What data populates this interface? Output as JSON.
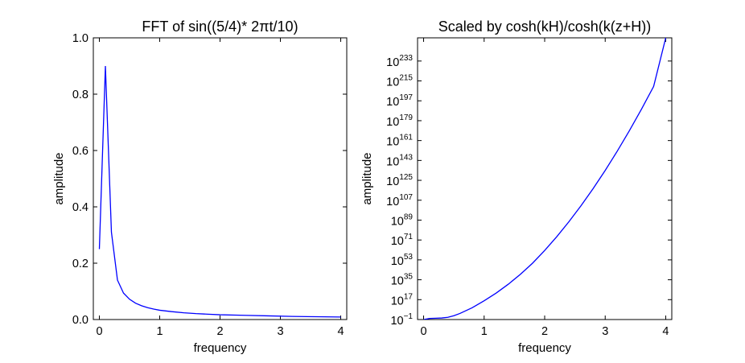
{
  "chart_data": [
    {
      "type": "line",
      "title": "FFT of sin((5/4)* 2πt/10)",
      "xlabel": "frequency",
      "ylabel": "amplitude",
      "xlim": [
        -0.1,
        4.1
      ],
      "ylim": [
        0.0,
        1.0
      ],
      "yscale": "linear",
      "grid": false,
      "line_color": "#0000ff",
      "xticks": [
        0,
        1,
        2,
        3,
        4
      ],
      "xtick_labels": [
        "0",
        "1",
        "2",
        "3",
        "4"
      ],
      "yticks": [
        0.0,
        0.2,
        0.4,
        0.6,
        0.8,
        1.0
      ],
      "ytick_labels": [
        "0.0",
        "0.2",
        "0.4",
        "0.6",
        "0.8",
        "1.0"
      ],
      "series": [
        {
          "x": [
            0.0,
            0.1,
            0.2,
            0.3,
            0.4,
            0.5,
            0.6,
            0.7,
            0.8,
            0.9,
            1.0,
            1.2,
            1.4,
            1.6,
            1.8,
            2.0,
            2.4,
            2.8,
            3.2,
            3.6,
            4.0
          ],
          "y": [
            0.25,
            0.9,
            0.31,
            0.14,
            0.094,
            0.072,
            0.058,
            0.049,
            0.042,
            0.037,
            0.033,
            0.028,
            0.024,
            0.021,
            0.019,
            0.017,
            0.015,
            0.013,
            0.011,
            0.01,
            0.009
          ]
        }
      ]
    },
    {
      "type": "line",
      "title": "Scaled by cosh(kH)/cosh(k(z+H))",
      "xlabel": "frequency",
      "ylabel": "amplitude",
      "xlim": [
        -0.1,
        4.1
      ],
      "ylim_log10": [
        -1,
        254
      ],
      "yscale": "log",
      "grid": false,
      "line_color": "#0000ff",
      "xticks": [
        0,
        1,
        2,
        3,
        4
      ],
      "xtick_labels": [
        "0",
        "1",
        "2",
        "3",
        "4"
      ],
      "yticks_exponent": [
        -1,
        17,
        35,
        53,
        71,
        89,
        107,
        125,
        143,
        161,
        179,
        197,
        215,
        233
      ],
      "ytick_base": "10",
      "ytick_exponent_labels": [
        "−1",
        "17",
        "35",
        "53",
        "71",
        "89",
        "107",
        "125",
        "143",
        "161",
        "179",
        "197",
        "215",
        "233"
      ],
      "series": [
        {
          "x": [
            0.0,
            0.1,
            0.2,
            0.3,
            0.4,
            0.5,
            0.6,
            0.8,
            1.0,
            1.2,
            1.4,
            1.6,
            1.8,
            2.0,
            2.2,
            2.4,
            2.6,
            2.8,
            3.0,
            3.2,
            3.4,
            3.6,
            3.8,
            4.0
          ],
          "log10_y": [
            -1.0,
            0.0,
            0.2,
            0.4,
            1.0,
            2.5,
            4.5,
            9.6,
            16.0,
            23.0,
            31.0,
            40.0,
            50.0,
            61.5,
            74.0,
            87.5,
            102.0,
            117.5,
            134.0,
            151.5,
            170.0,
            189.5,
            210.0,
            254.0
          ]
        }
      ]
    }
  ]
}
